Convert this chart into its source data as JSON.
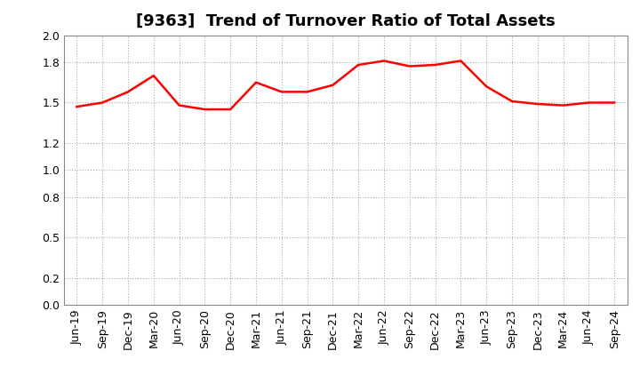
{
  "title": "[9363]  Trend of Turnover Ratio of Total Assets",
  "x_labels": [
    "Jun-19",
    "Sep-19",
    "Dec-19",
    "Mar-20",
    "Jun-20",
    "Sep-20",
    "Dec-20",
    "Mar-21",
    "Jun-21",
    "Sep-21",
    "Dec-21",
    "Mar-22",
    "Jun-22",
    "Sep-22",
    "Dec-22",
    "Mar-23",
    "Jun-23",
    "Sep-23",
    "Dec-23",
    "Mar-24",
    "Jun-24",
    "Sep-24"
  ],
  "y_values": [
    1.47,
    1.5,
    1.58,
    1.7,
    1.48,
    1.45,
    1.45,
    1.65,
    1.58,
    1.58,
    1.63,
    1.78,
    1.81,
    1.77,
    1.78,
    1.81,
    1.62,
    1.51,
    1.49,
    1.48,
    1.5,
    1.5
  ],
  "ylim": [
    0.0,
    2.0
  ],
  "yticks": [
    0.0,
    0.2,
    0.5,
    0.8,
    1.0,
    1.2,
    1.5,
    1.8,
    2.0
  ],
  "line_color": "#FF0000",
  "line_width": 1.8,
  "background_color": "#FFFFFF",
  "grid_color": "#AAAAAA",
  "title_fontsize": 13,
  "tick_fontsize": 9
}
